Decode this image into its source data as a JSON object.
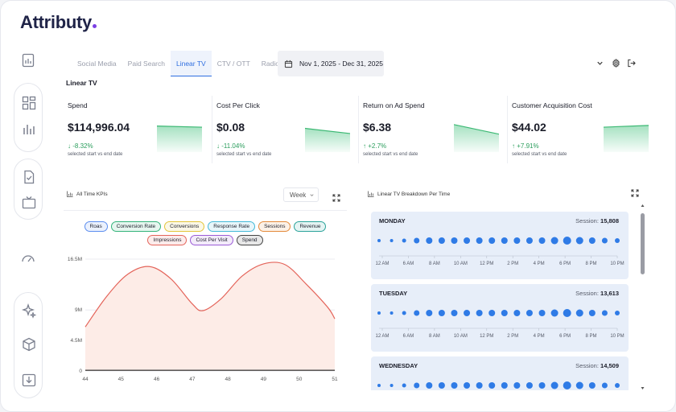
{
  "brand": {
    "name": "Attributy"
  },
  "sidebar": {
    "icons": [
      "report-icon",
      "dashboard-icon",
      "bar-chart-icon",
      "checklist-icon",
      "tv-icon",
      "gauge-icon",
      "sparkle-icon",
      "box-icon",
      "download-icon"
    ]
  },
  "tabs": [
    {
      "label": "Social Media",
      "active": false
    },
    {
      "label": "Paid Search",
      "active": false
    },
    {
      "label": "Linear TV",
      "active": true
    },
    {
      "label": "CTV / OTT",
      "active": false
    },
    {
      "label": "Radio",
      "active": false
    }
  ],
  "date_range": {
    "label": "Nov 1, 2025 - Dec 31, 2025"
  },
  "section_title": "Linear TV",
  "kpis": [
    {
      "label": "Spend",
      "value": "$114,996.04",
      "delta": "-8.32%",
      "delta_dir": "down",
      "sub": "selected start vs end date",
      "trend": [
        0.9,
        0.86
      ]
    },
    {
      "label": "Cost Per Click",
      "value": "$0.08",
      "delta": "-11.04%",
      "delta_dir": "down",
      "sub": "selected start vs end date",
      "trend": [
        0.82,
        0.64
      ]
    },
    {
      "label": "Return on Ad Spend",
      "value": "$6.38",
      "delta": "+2.7%",
      "delta_dir": "up",
      "sub": "selected start vs end date",
      "trend": [
        0.95,
        0.62
      ]
    },
    {
      "label": "Customer Acquisition Cost",
      "value": "$44.02",
      "delta": "+7.91%",
      "delta_dir": "up",
      "sub": "selected start vs end date",
      "trend": [
        0.86,
        0.92
      ]
    }
  ],
  "kpi_chart": {
    "title": "All Time KPIs",
    "period": "Week",
    "legend_rows": [
      [
        {
          "label": "Roas",
          "color": "#5b8def"
        },
        {
          "label": "Conversion Rate",
          "color": "#33b37a"
        },
        {
          "label": "Conversions",
          "color": "#e2c53a"
        },
        {
          "label": "Response Rate",
          "color": "#43b9d8"
        },
        {
          "label": "Sessions",
          "color": "#e48a3a"
        },
        {
          "label": "Revenue",
          "color": "#2aa39a"
        }
      ],
      [
        {
          "label": "Impressions",
          "color": "#e4645a"
        },
        {
          "label": "Cost Per Visit",
          "color": "#9b5bd6"
        },
        {
          "label": "Spend",
          "color": "#444444"
        }
      ]
    ]
  },
  "chart_data": {
    "type": "line",
    "x": [
      44,
      45,
      46,
      47,
      48,
      49,
      50,
      51
    ],
    "y_ticks": [
      "16.5M",
      "9M",
      "4.5M",
      "0"
    ],
    "y_tick_values": [
      16.5,
      9,
      4.5,
      0
    ],
    "ylim": [
      0,
      16.5
    ],
    "grid": true,
    "series": [
      {
        "name": "Impressions",
        "color": "#e4645a",
        "fill": "#fdece7",
        "points": [
          [
            44,
            6.5
          ],
          [
            44.6,
            11.0
          ],
          [
            45.2,
            14.3
          ],
          [
            45.8,
            15.4
          ],
          [
            46.4,
            13.6
          ],
          [
            47.0,
            9.9
          ],
          [
            47.3,
            8.9
          ],
          [
            47.8,
            10.6
          ],
          [
            48.4,
            14.0
          ],
          [
            49.0,
            15.8
          ],
          [
            49.6,
            15.7
          ],
          [
            50.2,
            12.8
          ],
          [
            50.8,
            9.4
          ],
          [
            51.0,
            7.7
          ]
        ]
      },
      {
        "name": "Spend",
        "color": "#444444",
        "points": [
          [
            44,
            0.1
          ],
          [
            51,
            0.1
          ]
        ]
      }
    ]
  },
  "breakdown": {
    "title": "Linear TV Breakdown Per Time",
    "session_label": "Session:",
    "time_labels": [
      "12 AM",
      "6 AM",
      "8 AM",
      "10 AM",
      "12 PM",
      "2 PM",
      "4 PM",
      "6 PM",
      "8 PM",
      "10 PM"
    ],
    "dot_sizes": [
      2,
      2,
      2.5,
      3.5,
      4,
      4,
      4,
      4,
      4,
      4,
      4,
      4,
      4,
      4,
      4.5,
      5,
      4.5,
      4,
      3.5,
      3
    ],
    "days": [
      {
        "name": "MONDAY",
        "session": "15,808"
      },
      {
        "name": "TUESDAY",
        "session": "13,613"
      },
      {
        "name": "WEDNESDAY",
        "session": "14,509"
      }
    ]
  }
}
